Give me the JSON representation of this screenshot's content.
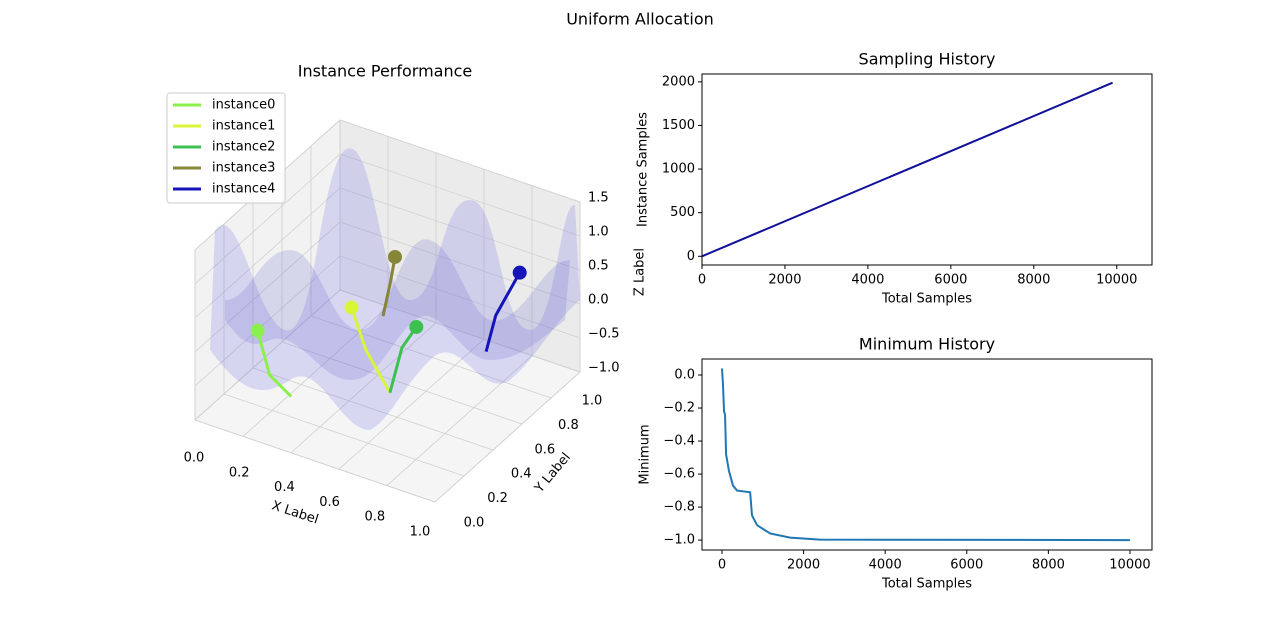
{
  "title": "Uniform Allocation",
  "chart_data": [
    {
      "type": "line3d",
      "title": "Instance Performance",
      "x_label": "X Label",
      "y_label": "Y Label",
      "z_label": "Z Label",
      "xlim": [
        0,
        1
      ],
      "ylim": [
        0,
        1
      ],
      "zlim": [
        -1,
        1.5
      ],
      "xticks": [
        {
          "value": 0,
          "label": "0.0"
        },
        0.2,
        0.4,
        0.6,
        0.8,
        {
          "value": 1,
          "label": "1.0"
        }
      ],
      "yticks": [
        {
          "value": 0,
          "label": "0.0"
        },
        0.2,
        0.4,
        0.6,
        0.8,
        {
          "value": 1,
          "label": "1.0"
        }
      ],
      "zticks": [
        {
          "value": -1,
          "label": "−1.0"
        },
        {
          "value": -0.5,
          "label": "−0.5"
        },
        {
          "value": 0,
          "label": "0.0"
        },
        0.5,
        {
          "value": 1,
          "label": "1.0"
        },
        1.5
      ],
      "legend": "upper left",
      "series": [
        {
          "name": "instance0",
          "color": "#8cf04c",
          "x": [
            0.28,
            0.19,
            0.14
          ],
          "y": [
            0.2,
            0.2,
            0.2
          ],
          "z": [
            -0.7,
            -0.49,
            0.1
          ]
        },
        {
          "name": "instance1",
          "color": "#d8f53a",
          "x": [
            0.51,
            0.41,
            0.35
          ],
          "y": [
            0.5,
            0.5,
            0.5
          ],
          "z": [
            -0.94,
            -0.43,
            0.12
          ]
        },
        {
          "name": "instance2",
          "color": "#3cc050",
          "x": [
            0.51,
            0.56,
            0.62
          ],
          "y": [
            0.5,
            0.5,
            0.5
          ],
          "z": [
            -0.94,
            -0.22,
            0.16
          ]
        },
        {
          "name": "instance3",
          "color": "#868638",
          "x": [
            0.3,
            0.33,
            0.35
          ],
          "y": [
            0.8,
            0.8,
            0.8
          ],
          "z": [
            -0.64,
            -0.12,
            0.29
          ]
        },
        {
          "name": "instance4",
          "color": "#1414b8",
          "x": [
            0.79,
            0.83,
            0.93
          ],
          "y": [
            0.7,
            0.7,
            0.7
          ],
          "z": [
            -0.38,
            0.2,
            0.95
          ]
        }
      ]
    },
    {
      "type": "line",
      "title": "Sampling History",
      "x_label": "Total Samples",
      "y_label": "Instance Samples",
      "xlim": [
        0,
        10850
      ],
      "ylim": [
        -100,
        2090
      ],
      "xticks": [
        0,
        2000,
        4000,
        6000,
        8000,
        10000
      ],
      "yticks": [
        0,
        500,
        1000,
        1500,
        2000
      ],
      "color": "#10109a",
      "x": [
        0,
        9900
      ],
      "values": [
        0,
        1990
      ]
    },
    {
      "type": "line",
      "title": "Minimum History",
      "x_label": "Total Samples",
      "y_label": "Minimum",
      "xlim": [
        -490,
        10540
      ],
      "ylim": [
        -1.06,
        0.097
      ],
      "xticks": [
        0,
        2000,
        4000,
        6000,
        8000,
        10000
      ],
      "yticks": [
        {
          "value": 0,
          "label": "0.0"
        },
        {
          "value": -0.2,
          "label": "−0.2"
        },
        {
          "value": -0.4,
          "label": "−0.4"
        },
        {
          "value": -0.6,
          "label": "−0.6"
        },
        {
          "value": -0.8,
          "label": "−0.8"
        },
        {
          "value": -1,
          "label": "−1.0"
        }
      ],
      "color": "#1f77b4",
      "x": [
        0,
        25,
        50,
        75,
        100,
        170,
        270,
        370,
        690,
        735,
        860,
        1180,
        1670,
        2400,
        10000
      ],
      "values": [
        0.04,
        -0.06,
        -0.22,
        -0.24,
        -0.48,
        -0.58,
        -0.67,
        -0.7,
        -0.71,
        -0.85,
        -0.91,
        -0.96,
        -0.985,
        -0.997,
        -1.0
      ]
    }
  ]
}
